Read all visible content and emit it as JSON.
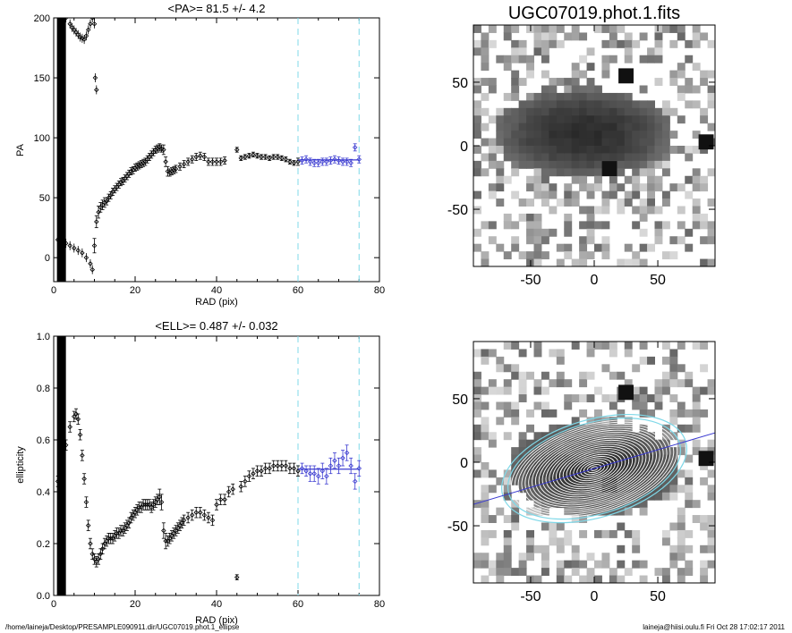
{
  "footer": {
    "left": "/home/laineja/Desktop/PRESAMPLE090911.dir/UGC07019.phot.1_ellipse",
    "right": "laineja@hiisi.oulu.fi  Fri Oct 28 17:02:17 2011"
  },
  "colors": {
    "points": "#000000",
    "fit": "#3a3ad0",
    "fit_range": "#7fd8e8",
    "ellipse_outer": "#7fd8e8"
  },
  "chart_data": [
    {
      "type": "scatter",
      "title": "<PA>=  81.5 +/-   4.2",
      "xlabel": "RAD (pix)",
      "ylabel": "PA",
      "xlim": [
        0,
        80
      ],
      "ylim": [
        -20,
        200
      ],
      "xticks": [
        0,
        20,
        40,
        60,
        80
      ],
      "yticks": [
        0,
        50,
        100,
        150,
        200
      ],
      "fit_range": [
        60,
        75
      ],
      "fit_value": 81.5,
      "series": [
        {
          "x": [
            10,
            10.5,
            11,
            11.5,
            12,
            12.5,
            13,
            13.5,
            14,
            14.5,
            15,
            15.5,
            16,
            16.5,
            17,
            17.5,
            18,
            18.5,
            19,
            19.5,
            20,
            20.5,
            21,
            21.5,
            22,
            22.5,
            23,
            23.5,
            24,
            24.5,
            25,
            25.5,
            26,
            26.5,
            27,
            27.5,
            28,
            28.5,
            29,
            29.5,
            30,
            31,
            32,
            33,
            34,
            35,
            36,
            37,
            38,
            39,
            40,
            41,
            42,
            45,
            46,
            47,
            48,
            49,
            50,
            51,
            52,
            53,
            54,
            55,
            56,
            57,
            58,
            59,
            60,
            61,
            62,
            63,
            64,
            65,
            66,
            67,
            68,
            69,
            70,
            71,
            72,
            73,
            74,
            75
          ],
          "y": [
            10,
            30,
            38,
            42,
            44,
            46,
            47,
            50,
            52,
            55,
            57,
            59,
            61,
            63,
            64,
            66,
            68,
            70,
            72,
            73,
            75,
            76,
            77,
            78,
            79,
            80,
            82,
            84,
            86,
            88,
            90,
            91,
            92,
            91,
            90,
            80,
            72,
            71,
            72,
            73,
            74,
            76,
            78,
            80,
            82,
            84,
            85,
            84,
            80,
            80,
            80,
            80,
            81,
            90,
            83,
            84,
            85,
            86,
            85,
            84,
            84,
            83,
            84,
            84,
            83,
            82,
            80,
            79,
            80,
            81,
            82,
            80,
            79,
            79,
            80,
            80,
            81,
            82,
            81,
            80,
            80,
            79,
            92,
            82
          ],
          "yerr": [
            6,
            5,
            5,
            4,
            4,
            4,
            3,
            3,
            3,
            3,
            3,
            3,
            3,
            3,
            3,
            3,
            3,
            3,
            3,
            3,
            3,
            3,
            3,
            3,
            3,
            3,
            3,
            3,
            3,
            3,
            3,
            3,
            3,
            3,
            4,
            4,
            4,
            3,
            3,
            3,
            3,
            3,
            3,
            3,
            3,
            3,
            3,
            3,
            3,
            3,
            3,
            3,
            3,
            2,
            2,
            2,
            2,
            2,
            2,
            2,
            2,
            2,
            2,
            2,
            2,
            2,
            2,
            2,
            3,
            3,
            3,
            3,
            3,
            3,
            3,
            3,
            3,
            3,
            3,
            3,
            3,
            3,
            3,
            3
          ]
        }
      ]
    },
    {
      "type": "scatter",
      "title": "<ELL>= 0.487 +/-  0.032",
      "xlabel": "RAD (pix)",
      "ylabel": "ellipticity",
      "xlim": [
        0,
        80
      ],
      "ylim": [
        0,
        1
      ],
      "xticks": [
        0,
        20,
        40,
        60,
        80
      ],
      "yticks": [
        0.0,
        0.2,
        0.4,
        0.6,
        0.8,
        1.0
      ],
      "fit_range": [
        60,
        75
      ],
      "fit_value": 0.487,
      "series": [
        {
          "x": [
            1,
            2,
            3,
            4,
            5,
            5.5,
            6,
            6.5,
            7,
            7.5,
            8,
            8.5,
            9,
            9.5,
            10,
            10.5,
            11,
            11.5,
            12,
            12.5,
            13,
            13.5,
            14,
            14.5,
            15,
            15.5,
            16,
            16.5,
            17,
            17.5,
            18,
            18.5,
            19,
            19.5,
            20,
            20.5,
            21,
            21.5,
            22,
            22.5,
            23,
            23.5,
            24,
            24.5,
            25,
            25.5,
            26,
            26.5,
            27,
            27.5,
            28,
            28.5,
            29,
            29.5,
            30,
            30.5,
            31,
            31.5,
            32,
            33,
            34,
            35,
            36,
            37,
            38,
            39,
            40,
            41,
            42,
            43,
            44,
            45,
            46,
            47,
            48,
            49,
            50,
            51,
            52,
            53,
            54,
            55,
            56,
            57,
            58,
            59,
            60,
            61,
            62,
            63,
            64,
            65,
            66,
            67,
            68,
            69,
            70,
            71,
            72,
            73,
            74,
            75
          ],
          "y": [
            0.44,
            0.5,
            0.58,
            0.65,
            0.69,
            0.7,
            0.68,
            0.62,
            0.54,
            0.45,
            0.36,
            0.27,
            0.2,
            0.16,
            0.14,
            0.13,
            0.14,
            0.16,
            0.18,
            0.2,
            0.21,
            0.22,
            0.22,
            0.22,
            0.23,
            0.24,
            0.24,
            0.25,
            0.25,
            0.26,
            0.27,
            0.28,
            0.3,
            0.31,
            0.32,
            0.33,
            0.34,
            0.34,
            0.35,
            0.35,
            0.35,
            0.35,
            0.34,
            0.35,
            0.36,
            0.37,
            0.38,
            0.36,
            0.25,
            0.21,
            0.21,
            0.22,
            0.23,
            0.24,
            0.25,
            0.26,
            0.27,
            0.28,
            0.29,
            0.3,
            0.31,
            0.32,
            0.32,
            0.31,
            0.3,
            0.29,
            0.35,
            0.37,
            0.37,
            0.4,
            0.41,
            0.07,
            0.42,
            0.44,
            0.46,
            0.47,
            0.48,
            0.48,
            0.49,
            0.49,
            0.5,
            0.5,
            0.5,
            0.5,
            0.49,
            0.49,
            0.48,
            0.49,
            0.48,
            0.47,
            0.47,
            0.46,
            0.48,
            0.46,
            0.5,
            0.52,
            0.5,
            0.53,
            0.55,
            0.5,
            0.44,
            0.49
          ],
          "yerr": [
            0.02,
            0.02,
            0.02,
            0.02,
            0.02,
            0.02,
            0.02,
            0.02,
            0.02,
            0.02,
            0.02,
            0.02,
            0.02,
            0.02,
            0.02,
            0.02,
            0.02,
            0.02,
            0.02,
            0.02,
            0.02,
            0.02,
            0.02,
            0.02,
            0.02,
            0.02,
            0.02,
            0.02,
            0.02,
            0.02,
            0.02,
            0.02,
            0.02,
            0.02,
            0.02,
            0.02,
            0.02,
            0.02,
            0.02,
            0.02,
            0.02,
            0.02,
            0.02,
            0.02,
            0.02,
            0.02,
            0.03,
            0.03,
            0.03,
            0.03,
            0.02,
            0.02,
            0.02,
            0.02,
            0.02,
            0.02,
            0.02,
            0.02,
            0.02,
            0.02,
            0.02,
            0.02,
            0.02,
            0.02,
            0.02,
            0.02,
            0.02,
            0.02,
            0.02,
            0.02,
            0.02,
            0.01,
            0.02,
            0.02,
            0.02,
            0.02,
            0.02,
            0.02,
            0.02,
            0.02,
            0.02,
            0.02,
            0.02,
            0.02,
            0.02,
            0.02,
            0.02,
            0.02,
            0.02,
            0.03,
            0.03,
            0.03,
            0.03,
            0.03,
            0.03,
            0.03,
            0.03,
            0.03,
            0.03,
            0.03,
            0.03,
            0.03
          ]
        }
      ]
    },
    {
      "type": "heatmap",
      "title": "UGC07019.phot.1.fits",
      "xlim": [
        -95,
        95
      ],
      "ylim": [
        -95,
        95
      ],
      "xticks": [
        -50,
        0,
        50
      ],
      "yticks": [
        -50,
        0,
        50
      ],
      "galaxy": {
        "cx": -8,
        "cy": 10,
        "a": 70,
        "b": 35
      }
    },
    {
      "type": "heatmap",
      "title": "",
      "xlim": [
        -95,
        95
      ],
      "ylim": [
        -95,
        95
      ],
      "xticks": [
        -50,
        0,
        50
      ],
      "yticks": [
        -50,
        0,
        50
      ],
      "galaxy": {
        "cx": 0,
        "cy": -5,
        "a": 68,
        "b": 36
      },
      "major_axis_pa": 81.5,
      "ellipse_ell": 0.487
    }
  ]
}
